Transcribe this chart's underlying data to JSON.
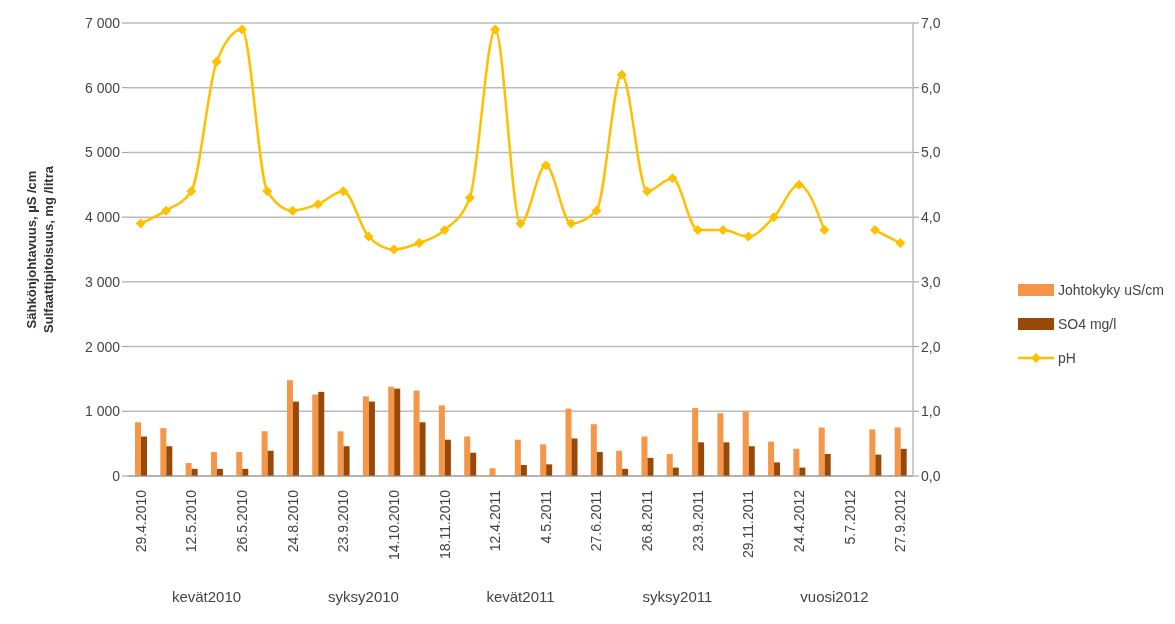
{
  "chart_data": {
    "type": "bar",
    "ylabel": "Sähkönjohtavuus, µS /cm\nSulfaattipitoisuus, mg /litra",
    "categories": [
      "29.4.2010",
      null,
      "12.5.2010",
      null,
      "26.5.2010",
      null,
      "24.8.2010",
      null,
      "23.9.2010",
      null,
      "14.10.2010",
      null,
      "18.11.2010",
      null,
      "12.4.2011",
      null,
      "4.5.2011",
      null,
      "27.6.2011",
      null,
      "26.8.2011",
      null,
      "23.9.2011",
      null,
      "29.11.2011",
      null,
      "24.4.2012",
      null,
      "5.7.2012",
      null,
      "27.9.2012"
    ],
    "series": [
      {
        "name": "Johtokyky uS/cm",
        "color": "#f79646",
        "values": [
          830,
          740,
          200,
          370,
          370,
          690,
          1480,
          1260,
          690,
          1230,
          1380,
          1320,
          1090,
          610,
          120,
          560,
          490,
          1040,
          800,
          390,
          610,
          340,
          1050,
          970,
          1000,
          530,
          420,
          750,
          null,
          720,
          750
        ]
      },
      {
        "name": "SO4 mg/l",
        "color": "#984807",
        "values": [
          610,
          460,
          110,
          110,
          110,
          390,
          1150,
          1300,
          460,
          1150,
          1350,
          830,
          560,
          360,
          null,
          170,
          180,
          580,
          370,
          110,
          280,
          130,
          520,
          520,
          460,
          210,
          130,
          340,
          null,
          330,
          420
        ]
      },
      {
        "name": "pH",
        "type": "line",
        "axis": "y2",
        "color": "#ffc000",
        "values": [
          3.9,
          4.1,
          4.4,
          6.4,
          6.9,
          4.4,
          4.1,
          4.2,
          4.4,
          3.7,
          3.5,
          3.6,
          3.8,
          4.3,
          6.9,
          3.9,
          4.8,
          3.9,
          4.1,
          6.2,
          4.4,
          4.6,
          3.8,
          3.8,
          3.7,
          4.0,
          4.5,
          3.8,
          null,
          3.8,
          3.6
        ]
      }
    ],
    "ylim": [
      0,
      7000
    ],
    "yticks": [
      {
        "value": 0,
        "label": "0"
      },
      {
        "value": 1000,
        "label": "1 000"
      },
      {
        "value": 2000,
        "label": "2 000"
      },
      {
        "value": 3000,
        "label": "3 000"
      },
      {
        "value": 4000,
        "label": "4 000"
      },
      {
        "value": 5000,
        "label": "5 000"
      },
      {
        "value": 6000,
        "label": "6 000"
      },
      {
        "value": 7000,
        "label": "7 000"
      }
    ],
    "y2lim": [
      0,
      7
    ],
    "y2ticks": [
      {
        "value": 0,
        "label": "0,0"
      },
      {
        "value": 1,
        "label": "1,0"
      },
      {
        "value": 2,
        "label": "2,0"
      },
      {
        "value": 3,
        "label": "3,0"
      },
      {
        "value": 4,
        "label": "4,0"
      },
      {
        "value": 5,
        "label": "5,0"
      },
      {
        "value": 6,
        "label": "6,0"
      },
      {
        "value": 7,
        "label": "7,0"
      }
    ],
    "annotations": [
      "kevät2010",
      "syksy2010",
      "kevät2011",
      "syksy2011",
      "vuosi2012"
    ],
    "grid": "y",
    "legend": "right",
    "marker": "diamond",
    "line_style": "solid"
  }
}
